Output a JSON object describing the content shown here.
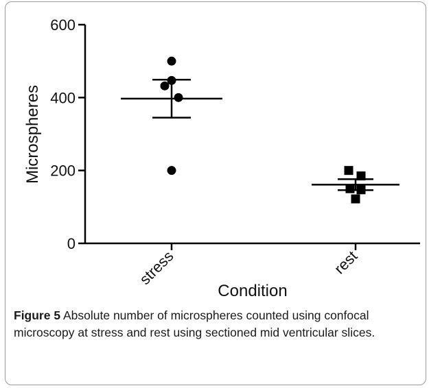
{
  "chart_data": {
    "type": "scatter",
    "xlabel": "Condition",
    "ylabel": "Microspheres",
    "ylim": [
      0,
      600
    ],
    "yticks": [
      "0",
      "200",
      "400",
      "600"
    ],
    "categories": [
      "stress",
      "rest"
    ],
    "groups": [
      {
        "category": "stress",
        "marker": "circle",
        "values": [
          500,
          447,
          432,
          400,
          200
        ],
        "mean": 397,
        "error_upper": 449,
        "error_lower": 345
      },
      {
        "category": "rest",
        "marker": "square",
        "values": [
          200,
          185,
          150,
          147,
          122
        ],
        "mean": 161,
        "error_upper": 176,
        "error_lower": 146
      }
    ]
  },
  "caption": {
    "label": "Figure 5",
    "text": " Absolute number of microspheres counted using confocal microscopy at stress and rest using sectioned mid ventricular slices."
  }
}
